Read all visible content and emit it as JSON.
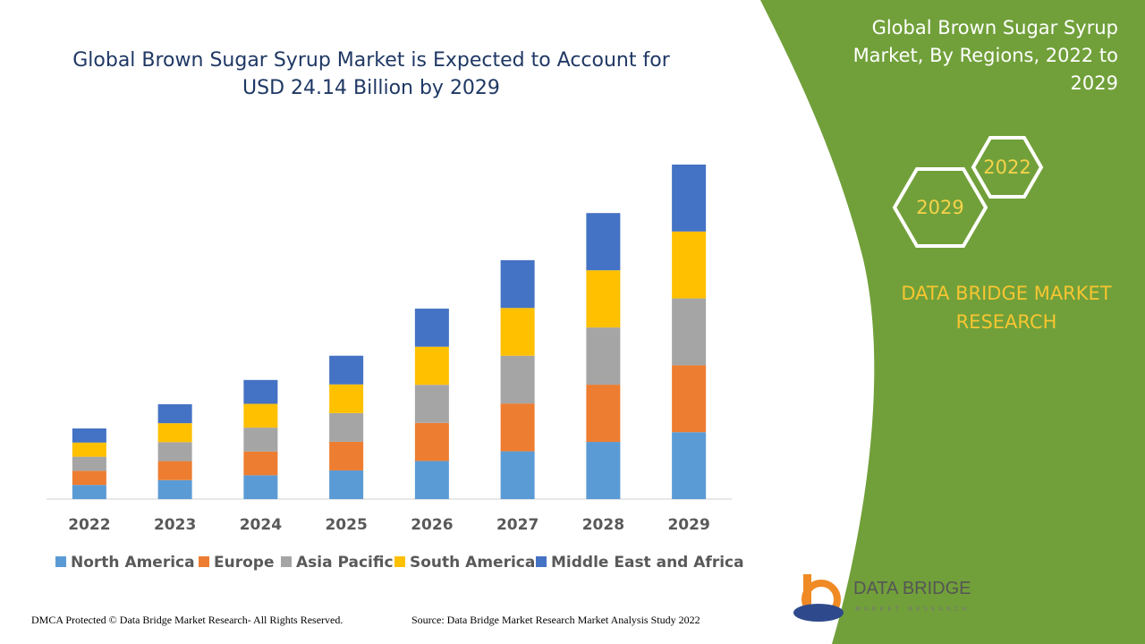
{
  "chart_data": {
    "type": "stacked-bar",
    "title": "Global Brown Sugar Syrup Market is Expected to Account for USD 24.14 Billion by 2029",
    "categories": [
      "2022",
      "2023",
      "2024",
      "2025",
      "2026",
      "2027",
      "2028",
      "2029"
    ],
    "series": [
      {
        "name": "North America",
        "color": "#5b9bd5",
        "values": [
          1.02,
          1.37,
          1.72,
          2.07,
          2.75,
          3.45,
          4.13,
          4.83
        ]
      },
      {
        "name": "Europe",
        "color": "#ed7d31",
        "values": [
          1.02,
          1.37,
          1.72,
          2.07,
          2.75,
          3.45,
          4.13,
          4.83
        ]
      },
      {
        "name": "Asia Pacific",
        "color": "#a5a5a5",
        "values": [
          1.02,
          1.37,
          1.72,
          2.07,
          2.75,
          3.45,
          4.13,
          4.83
        ]
      },
      {
        "name": "South America",
        "color": "#ffc000",
        "values": [
          1.02,
          1.37,
          1.72,
          2.07,
          2.75,
          3.45,
          4.13,
          4.83
        ]
      },
      {
        "name": "Middle East and Africa",
        "color": "#4472c4",
        "values": [
          1.02,
          1.37,
          1.72,
          2.07,
          2.75,
          3.45,
          4.13,
          4.83
        ]
      }
    ]
  },
  "panel": {
    "title": "Global Brown Sugar Syrup Market, By Regions, 2022 to 2029",
    "hex_labels": [
      "2022",
      "2029"
    ],
    "brand": "DATA BRIDGE MARKET RESEARCH"
  },
  "logo": {
    "name": "DATA BRIDGE",
    "tagline": "MARKET RESEARCH"
  },
  "footer": {
    "copyright": "DMCA Protected © Data Bridge Market Research- All Rights Reserved.",
    "source": "Source: Data Bridge Market Research Market Analysis Study 2022"
  }
}
